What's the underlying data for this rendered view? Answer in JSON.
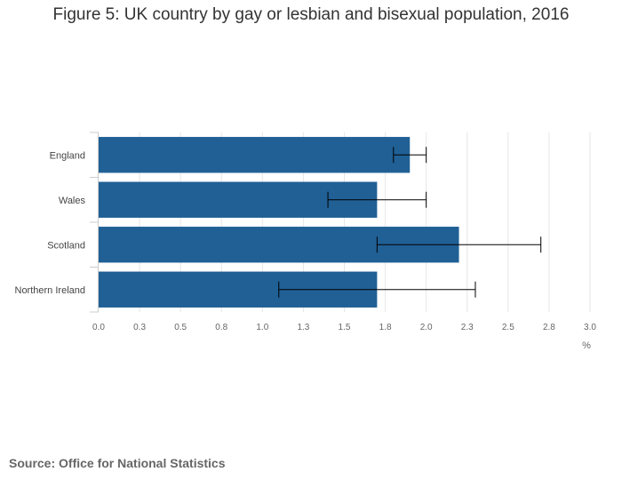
{
  "chart_data": {
    "type": "bar",
    "orientation": "horizontal",
    "title": "Figure 5: UK country by gay or lesbian and bisexual population, 2016",
    "categories": [
      "England",
      "Wales",
      "Scotland",
      "Northern Ireland"
    ],
    "values": [
      1.9,
      1.7,
      2.2,
      1.7
    ],
    "error_low": [
      1.8,
      1.4,
      1.7,
      1.1
    ],
    "error_high": [
      2.0,
      2.0,
      2.7,
      2.3
    ],
    "x_ticks": [
      0.0,
      0.25,
      0.5,
      0.75,
      1.0,
      1.25,
      1.5,
      1.75,
      2.0,
      2.25,
      2.5,
      2.75,
      3.0
    ],
    "x_tick_labels": [
      "0.0",
      "0.3",
      "0.5",
      "0.8",
      "1.0",
      "1.3",
      "1.5",
      "1.8",
      "2.0",
      "2.3",
      "2.5",
      "2.8",
      "3.0"
    ],
    "xlim": [
      0,
      3.0
    ],
    "xlabel": "%",
    "ylabel": "",
    "grid": true,
    "colors": {
      "bar": "#206095",
      "grid": "#e6e6e6",
      "error_bar": "#000000",
      "axis": "#cccccc"
    }
  },
  "source": "Source: Office for National Statistics"
}
